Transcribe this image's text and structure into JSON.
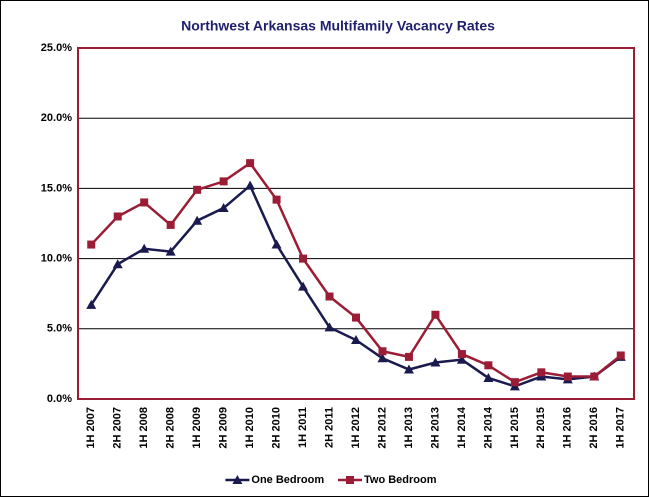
{
  "chart_data": {
    "type": "line",
    "title": "Northwest Arkansas Multifamily Vacancy Rates",
    "categories": [
      "1H 2007",
      "2H 2007",
      "1H 2008",
      "2H 2008",
      "1H 2009",
      "2H 2009",
      "1H 2010",
      "2H 2010",
      "1H 2011",
      "2H 2011",
      "1H 2012",
      "2H 2012",
      "1H 2013",
      "2H 2013",
      "1H 2014",
      "2H 2014",
      "1H 2015",
      "2H 2015",
      "1H 2016",
      "2H 2016",
      "1H 2017"
    ],
    "series": [
      {
        "name": "One Bedroom",
        "color": "#1a1a4e",
        "marker": "triangle",
        "values": [
          6.7,
          9.6,
          10.7,
          10.5,
          12.7,
          13.6,
          15.2,
          11.0,
          8.0,
          5.1,
          4.2,
          2.9,
          2.1,
          2.6,
          2.8,
          1.5,
          0.9,
          1.6,
          1.4,
          1.6,
          3.0
        ]
      },
      {
        "name": "Two Bedroom",
        "color": "#9b1d35",
        "marker": "square",
        "values": [
          11.0,
          13.0,
          14.0,
          12.4,
          14.9,
          15.5,
          16.8,
          14.2,
          10.0,
          7.3,
          5.8,
          3.4,
          3.0,
          6.0,
          3.2,
          2.4,
          1.2,
          1.9,
          1.6,
          1.6,
          3.1
        ]
      }
    ],
    "ylim": [
      0,
      25
    ],
    "yticks": [
      {
        "value": 0,
        "label": "0.0%"
      },
      {
        "value": 5,
        "label": "5.0%"
      },
      {
        "value": 10,
        "label": "10.0%"
      },
      {
        "value": 15,
        "label": "15.0%"
      },
      {
        "value": 20,
        "label": "20.0%"
      },
      {
        "value": 25,
        "label": "25.0%"
      }
    ],
    "grid": true,
    "legend": "bottom"
  }
}
